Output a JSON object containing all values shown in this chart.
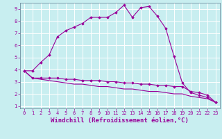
{
  "title": "",
  "xlabel": "Windchill (Refroidissement éolien,°C)",
  "ylabel": "",
  "background_color": "#c8eef0",
  "line_color": "#990099",
  "grid_color": "#ffffff",
  "xlim": [
    -0.5,
    23.5
  ],
  "ylim": [
    0.8,
    9.5
  ],
  "yticks": [
    1,
    2,
    3,
    4,
    5,
    6,
    7,
    8,
    9
  ],
  "xticks": [
    0,
    1,
    2,
    3,
    4,
    5,
    6,
    7,
    8,
    9,
    10,
    11,
    12,
    13,
    14,
    15,
    16,
    17,
    18,
    19,
    20,
    21,
    22,
    23
  ],
  "curve1_x": [
    0,
    1,
    2,
    3,
    4,
    5,
    6,
    7,
    8,
    9,
    10,
    11,
    12,
    13,
    14,
    15,
    16,
    17,
    18,
    19,
    20,
    21,
    22,
    23
  ],
  "curve1_y": [
    3.9,
    3.9,
    4.6,
    5.2,
    6.7,
    7.2,
    7.5,
    7.8,
    8.3,
    8.3,
    8.3,
    8.7,
    9.3,
    8.3,
    9.1,
    9.2,
    8.4,
    7.4,
    5.1,
    2.9,
    2.1,
    1.9,
    1.7,
    1.3
  ],
  "curve2_x": [
    0,
    1,
    2,
    3,
    4,
    5,
    6,
    7,
    8,
    9,
    10,
    11,
    12,
    13,
    14,
    15,
    16,
    17,
    18,
    19,
    20,
    21,
    22,
    23
  ],
  "curve2_y": [
    3.9,
    3.3,
    3.3,
    3.3,
    3.3,
    3.2,
    3.2,
    3.1,
    3.1,
    3.1,
    3.0,
    3.0,
    2.9,
    2.9,
    2.8,
    2.8,
    2.7,
    2.7,
    2.6,
    2.6,
    2.2,
    2.1,
    1.9,
    1.3
  ],
  "curve3_x": [
    0,
    1,
    2,
    3,
    4,
    5,
    6,
    7,
    8,
    9,
    10,
    11,
    12,
    13,
    14,
    15,
    16,
    17,
    18,
    19,
    20,
    21,
    22,
    23
  ],
  "curve3_y": [
    3.9,
    3.3,
    3.2,
    3.1,
    3.0,
    2.9,
    2.8,
    2.8,
    2.7,
    2.6,
    2.6,
    2.5,
    2.4,
    2.4,
    2.3,
    2.2,
    2.2,
    2.1,
    2.0,
    2.0,
    1.8,
    1.7,
    1.6,
    1.3
  ],
  "tick_fontsize": 5.0,
  "xlabel_fontsize": 6.5,
  "marker": "D",
  "markersize": 1.8,
  "linewidth": 0.8
}
